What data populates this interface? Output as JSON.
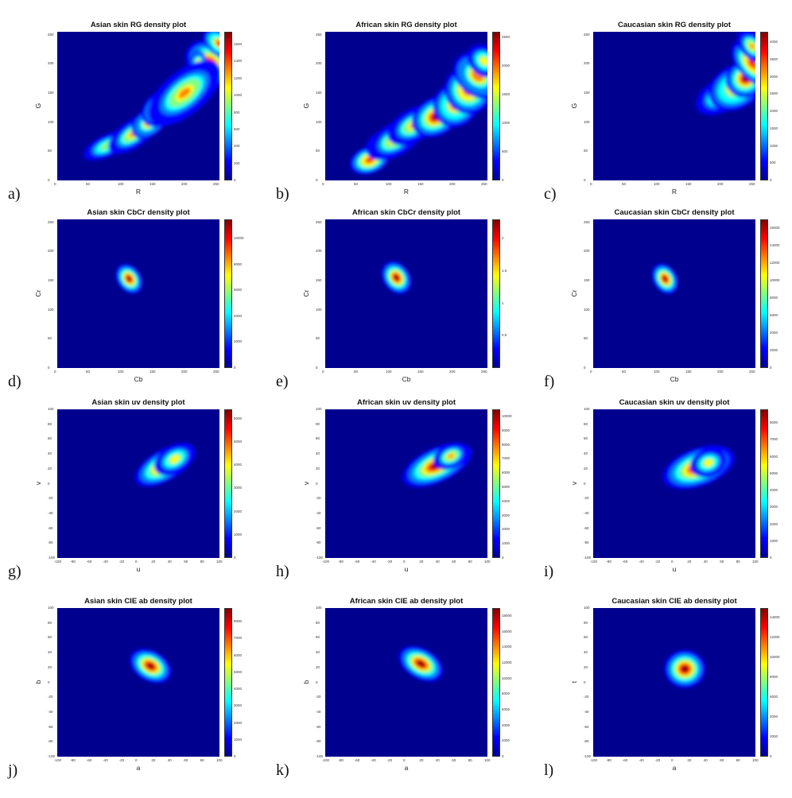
{
  "figure": {
    "colormap": [
      "#00008f",
      "#0000ff",
      "#0080ff",
      "#00ffff",
      "#80ff80",
      "#ffff00",
      "#ff8000",
      "#ff0000",
      "#800000"
    ],
    "background_color": "#00008f"
  },
  "chart_data": [
    {
      "letter": "a)",
      "type": "heatmap",
      "title": "Asian skin RG density plot",
      "xlabel": "R",
      "ylabel": "G",
      "xticks": [
        "0",
        "50",
        "100",
        "150",
        "200",
        "250"
      ],
      "yticks": [
        "0",
        "50",
        "100",
        "150",
        "200",
        "250"
      ],
      "xlim": [
        0,
        255
      ],
      "ylim": [
        0,
        255
      ],
      "cbar_ticks": [
        "0",
        "200",
        "400",
        "600",
        "800",
        "1000",
        "1200",
        "1400",
        "1600"
      ],
      "cbar_max": 1750,
      "blobs": [
        [
          80,
          60,
          18,
          8,
          25,
          0.45
        ],
        [
          120,
          80,
          20,
          10,
          35,
          0.55
        ],
        [
          145,
          100,
          14,
          10,
          40,
          0.7
        ],
        [
          165,
          125,
          16,
          12,
          40,
          0.85
        ],
        [
          190,
          145,
          18,
          14,
          40,
          0.95
        ],
        [
          215,
          165,
          16,
          14,
          40,
          0.9
        ],
        [
          240,
          200,
          14,
          20,
          50,
          0.95
        ],
        [
          222,
          200,
          6,
          10,
          0,
          0.65
        ],
        [
          255,
          235,
          8,
          14,
          50,
          0.8
        ],
        [
          200,
          150,
          30,
          16,
          40,
          0.55
        ]
      ]
    },
    {
      "letter": "b)",
      "type": "heatmap",
      "title": "African skin RG density plot",
      "xlabel": "R",
      "ylabel": "G",
      "xticks": [
        "0",
        "50",
        "100",
        "150",
        "200",
        "250"
      ],
      "yticks": [
        "0",
        "50",
        "100",
        "150",
        "200",
        "250"
      ],
      "xlim": [
        0,
        255
      ],
      "ylim": [
        0,
        255
      ],
      "cbar_ticks": [
        "0",
        "500",
        "1000",
        "1500",
        "2000",
        "2500"
      ],
      "cbar_max": 2600,
      "blobs": [
        [
          70,
          35,
          14,
          10,
          20,
          0.85
        ],
        [
          90,
          60,
          12,
          10,
          30,
          0.9
        ],
        [
          110,
          70,
          20,
          12,
          30,
          0.6
        ],
        [
          140,
          95,
          20,
          12,
          30,
          0.6
        ],
        [
          175,
          110,
          18,
          14,
          30,
          0.98
        ],
        [
          205,
          130,
          16,
          16,
          40,
          0.8
        ],
        [
          225,
          155,
          16,
          18,
          45,
          0.85
        ],
        [
          240,
          180,
          14,
          20,
          50,
          0.7
        ],
        [
          250,
          205,
          10,
          14,
          50,
          0.5
        ]
      ]
    },
    {
      "letter": "c)",
      "type": "heatmap",
      "title": "Caucasian skin RG density plot",
      "xlabel": "R",
      "ylabel": "G",
      "xticks": [
        "0",
        "50",
        "100",
        "150",
        "200",
        "250"
      ],
      "yticks": [
        "0",
        "50",
        "100",
        "150",
        "200",
        "250"
      ],
      "xlim": [
        0,
        255
      ],
      "ylim": [
        0,
        255
      ],
      "cbar_ticks": [
        "0",
        "500",
        "1000",
        "1500",
        "2000",
        "2500",
        "3000",
        "3500",
        "4000"
      ],
      "cbar_max": 4300,
      "blobs": [
        [
          200,
          145,
          18,
          12,
          30,
          0.6
        ],
        [
          225,
          160,
          20,
          16,
          30,
          0.75
        ],
        [
          240,
          175,
          14,
          14,
          30,
          0.95
        ],
        [
          250,
          200,
          10,
          20,
          40,
          0.85
        ],
        [
          250,
          230,
          8,
          14,
          40,
          0.6
        ]
      ]
    },
    {
      "letter": "d)",
      "type": "heatmap",
      "title": "Asian skin CbCr density plot",
      "xlabel": "Cb",
      "ylabel": "Cr",
      "xticks": [
        "0",
        "50",
        "100",
        "150",
        "200",
        "250"
      ],
      "yticks": [
        "0",
        "50",
        "100",
        "150",
        "200",
        "250"
      ],
      "xlim": [
        0,
        255
      ],
      "ylim": [
        0,
        255
      ],
      "cbar_ticks": [
        "0",
        "2000",
        "4000",
        "6000",
        "8000",
        "10000"
      ],
      "cbar_max": 11500,
      "blobs": [
        [
          113,
          153,
          8,
          12,
          35,
          1.0
        ]
      ]
    },
    {
      "letter": "e)",
      "type": "heatmap",
      "title": "African skin CbCr density plot",
      "xlabel": "Cb",
      "ylabel": "Cr",
      "xticks": [
        "0",
        "50",
        "100",
        "150",
        "200",
        "250"
      ],
      "yticks": [
        "0",
        "50",
        "100",
        "150",
        "200",
        "250"
      ],
      "xlim": [
        0,
        255
      ],
      "ylim": [
        0,
        255
      ],
      "cbar_ticks": [
        "0.5",
        "1",
        "1.5",
        "2"
      ],
      "cbar_max": 2.3,
      "blobs": [
        [
          112,
          155,
          9,
          13,
          35,
          1.0
        ]
      ]
    },
    {
      "letter": "f)",
      "type": "heatmap",
      "title": "Caucasian skin CbCr density plot",
      "xlabel": "Cb",
      "ylabel": "Cr",
      "xticks": [
        "0",
        "50",
        "100",
        "150",
        "200",
        "250"
      ],
      "yticks": [
        "0",
        "50",
        "100",
        "150",
        "200",
        "250"
      ],
      "xlim": [
        0,
        255
      ],
      "ylim": [
        0,
        255
      ],
      "cbar_ticks": [
        "0",
        "2000",
        "4000",
        "6000",
        "8000",
        "10000",
        "12000",
        "14000",
        "16000"
      ],
      "cbar_max": 17000,
      "blobs": [
        [
          113,
          153,
          8,
          12,
          30,
          1.0
        ]
      ]
    },
    {
      "letter": "g)",
      "type": "heatmap",
      "title": "Asian skin uv density plot",
      "xlabel": "u",
      "ylabel": "v",
      "xticks": [
        "-100",
        "-80",
        "-60",
        "-40",
        "-20",
        "0",
        "20",
        "40",
        "60",
        "80",
        "100"
      ],
      "yticks": [
        "-100",
        "-80",
        "-60",
        "-40",
        "-20",
        "0",
        "20",
        "40",
        "60",
        "80",
        "100"
      ],
      "xlim": [
        -100,
        100
      ],
      "ylim": [
        -100,
        100
      ],
      "cbar_ticks": [
        "0",
        "1000",
        "2000",
        "3000",
        "4000",
        "5000",
        "6000"
      ],
      "cbar_max": 6400,
      "blobs": [
        [
          33,
          25,
          18,
          9,
          30,
          1.0
        ],
        [
          45,
          33,
          12,
          8,
          30,
          0.5
        ]
      ]
    },
    {
      "letter": "h)",
      "type": "heatmap",
      "title": "African skin uv density plot",
      "xlabel": "u",
      "ylabel": "v",
      "xticks": [
        "-100",
        "-80",
        "-60",
        "-40",
        "-20",
        "0",
        "20",
        "40",
        "60",
        "80",
        "100"
      ],
      "yticks": [
        "-100",
        "-80",
        "-60",
        "-40",
        "-20",
        "0",
        "20",
        "40",
        "60",
        "80",
        "100"
      ],
      "xlim": [
        -100,
        100
      ],
      "ylim": [
        -100,
        100
      ],
      "cbar_ticks": [
        "0",
        "1000",
        "2000",
        "3000",
        "4000",
        "5000",
        "6000",
        "7000",
        "8000",
        "9000",
        "10000"
      ],
      "cbar_max": 10500,
      "blobs": [
        [
          38,
          25,
          20,
          10,
          25,
          1.0
        ],
        [
          55,
          37,
          10,
          7,
          25,
          0.6
        ]
      ]
    },
    {
      "letter": "i)",
      "type": "heatmap",
      "title": "Caucasian skin uv density plot",
      "xlabel": "u",
      "ylabel": "v",
      "xticks": [
        "-100",
        "-80",
        "-60",
        "-40",
        "-20",
        "0",
        "20",
        "40",
        "60",
        "80",
        "100"
      ],
      "yticks": [
        "-100",
        "-80",
        "-60",
        "-40",
        "-20",
        "0",
        "20",
        "40",
        "60",
        "80",
        "100"
      ],
      "xlim": [
        -100,
        100
      ],
      "ylim": [
        -100,
        100
      ],
      "cbar_ticks": [
        "0",
        "1000",
        "2000",
        "3000",
        "4000",
        "5000",
        "6000",
        "7000",
        "8000"
      ],
      "cbar_max": 8800,
      "blobs": [
        [
          30,
          22,
          20,
          11,
          20,
          1.0
        ],
        [
          42,
          28,
          10,
          8,
          20,
          0.5
        ]
      ]
    },
    {
      "letter": "j)",
      "type": "heatmap",
      "title": "Asian skin CIE ab density plot",
      "xlabel": "a",
      "ylabel": "b",
      "xticks": [
        "-100",
        "-80",
        "-60",
        "-40",
        "-20",
        "0",
        "20",
        "40",
        "60",
        "80",
        "100"
      ],
      "yticks": [
        "-100",
        "-80",
        "-60",
        "-40",
        "-20",
        "0",
        "20",
        "40",
        "60",
        "80",
        "100"
      ],
      "xlim": [
        -100,
        100
      ],
      "ylim": [
        -100,
        100
      ],
      "cbar_ticks": [
        "0",
        "1000",
        "2000",
        "3000",
        "4000",
        "5000",
        "6000",
        "7000",
        "8000"
      ],
      "cbar_max": 8800,
      "blobs": [
        [
          15,
          22,
          8,
          13,
          60,
          1.0
        ]
      ]
    },
    {
      "letter": "k)",
      "type": "heatmap",
      "title": "African skin CIE ab density plot",
      "xlabel": "a",
      "ylabel": "b",
      "xticks": [
        "-100",
        "-80",
        "-60",
        "-40",
        "-20",
        "0",
        "20",
        "40",
        "60",
        "80",
        "100"
      ],
      "yticks": [
        "-100",
        "-80",
        "-60",
        "-40",
        "-20",
        "0",
        "20",
        "40",
        "60",
        "80",
        "100"
      ],
      "xlim": [
        -100,
        100
      ],
      "ylim": [
        -100,
        100
      ],
      "cbar_ticks": [
        "0",
        "2000",
        "4000",
        "6000",
        "8000",
        "10000",
        "12000",
        "14000",
        "16000",
        "18000"
      ],
      "cbar_max": 19000,
      "blobs": [
        [
          18,
          25,
          8,
          14,
          60,
          1.0
        ]
      ]
    },
    {
      "letter": "l)",
      "type": "heatmap",
      "title": "Caucasian skin CIE ab density plot",
      "xlabel": "a",
      "ylabel": "t",
      "xticks": [
        "-100",
        "-80",
        "-60",
        "-40",
        "-20",
        "0",
        "20",
        "40",
        "60",
        "80",
        "100"
      ],
      "yticks": [
        "-100",
        "-80",
        "-60",
        "-40",
        "-20",
        "0",
        "20",
        "40",
        "60",
        "80",
        "100"
      ],
      "xlim": [
        -100,
        100
      ],
      "ylim": [
        -100,
        100
      ],
      "cbar_ticks": [
        "0",
        "2000",
        "4000",
        "6000",
        "8000",
        "10000",
        "12000",
        "14000"
      ],
      "cbar_max": 15000,
      "blobs": [
        [
          13,
          18,
          11,
          11,
          0,
          1.0
        ]
      ]
    }
  ]
}
